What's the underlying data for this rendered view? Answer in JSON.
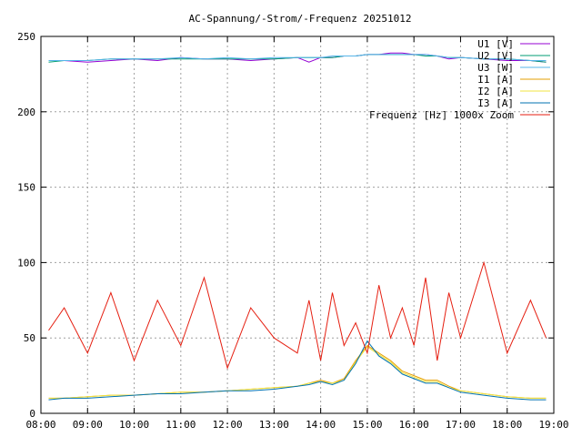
{
  "chart_data": {
    "type": "line",
    "title": "AC-Spannung/-Strom/-Frequenz 20251012",
    "xlabel": "",
    "ylabel": "",
    "xlim": [
      "08:00",
      "19:00"
    ],
    "ylim": [
      0,
      250
    ],
    "x_ticks": [
      "08:00",
      "09:00",
      "10:00",
      "11:00",
      "12:00",
      "13:00",
      "14:00",
      "15:00",
      "16:00",
      "17:00",
      "18:00",
      "19:00"
    ],
    "y_ticks": [
      "0",
      "50",
      "100",
      "150",
      "200",
      "250"
    ],
    "grid": true,
    "legend_position": "top-right",
    "x": [
      "08:10",
      "08:30",
      "09:00",
      "09:30",
      "10:00",
      "10:30",
      "11:00",
      "11:30",
      "12:00",
      "12:30",
      "13:00",
      "13:30",
      "13:45",
      "14:00",
      "14:15",
      "14:30",
      "14:45",
      "15:00",
      "15:15",
      "15:30",
      "15:45",
      "16:00",
      "16:15",
      "16:30",
      "16:45",
      "17:00",
      "17:30",
      "18:00",
      "18:30",
      "18:50"
    ],
    "series": [
      {
        "name": "U1 [V]",
        "color": "#9400d3",
        "values": [
          234,
          234,
          233,
          234,
          235,
          234,
          236,
          235,
          235,
          234,
          235,
          236,
          233,
          236,
          236,
          237,
          237,
          238,
          238,
          239,
          239,
          238,
          238,
          237,
          235,
          236,
          235,
          234,
          234,
          233
        ]
      },
      {
        "name": "U2 [V]",
        "color": "#009e73",
        "values": [
          233,
          234,
          234,
          235,
          235,
          235,
          235,
          235,
          235,
          235,
          235,
          236,
          236,
          236,
          236,
          237,
          237,
          238,
          238,
          238,
          238,
          238,
          237,
          237,
          236,
          236,
          235,
          235,
          234,
          233
        ]
      },
      {
        "name": "U3 [W]",
        "color": "#56b4e9",
        "values": [
          234,
          234,
          234,
          235,
          235,
          235,
          236,
          235,
          236,
          235,
          236,
          236,
          236,
          236,
          237,
          237,
          237,
          238,
          238,
          238,
          238,
          238,
          238,
          237,
          236,
          236,
          235,
          235,
          234,
          234
        ]
      },
      {
        "name": "I1 [A]",
        "color": "#e69f00",
        "values": [
          10,
          10,
          11,
          12,
          12,
          13,
          14,
          14,
          15,
          16,
          17,
          18,
          20,
          22,
          20,
          23,
          35,
          45,
          40,
          35,
          28,
          25,
          22,
          22,
          18,
          15,
          13,
          11,
          10,
          10
        ]
      },
      {
        "name": "I2 [A]",
        "color": "#f0e442",
        "values": [
          10,
          10,
          11,
          12,
          12,
          13,
          14,
          14,
          15,
          16,
          17,
          18,
          20,
          21,
          20,
          22,
          34,
          44,
          39,
          34,
          27,
          24,
          21,
          21,
          17,
          15,
          13,
          11,
          10,
          10
        ]
      },
      {
        "name": "I3 [A]",
        "color": "#0072b2",
        "values": [
          9,
          10,
          10,
          11,
          12,
          13,
          13,
          14,
          15,
          15,
          16,
          18,
          19,
          21,
          19,
          22,
          33,
          48,
          38,
          33,
          26,
          23,
          20,
          20,
          17,
          14,
          12,
          10,
          9,
          9
        ]
      },
      {
        "name": "Frequenz [Hz] 1000x Zoom",
        "color": "#e51e10",
        "values": [
          55,
          70,
          40,
          80,
          35,
          75,
          45,
          90,
          30,
          70,
          50,
          40,
          75,
          35,
          80,
          45,
          60,
          40,
          85,
          50,
          70,
          45,
          90,
          35,
          80,
          50,
          100,
          40,
          75,
          50
        ]
      }
    ]
  }
}
